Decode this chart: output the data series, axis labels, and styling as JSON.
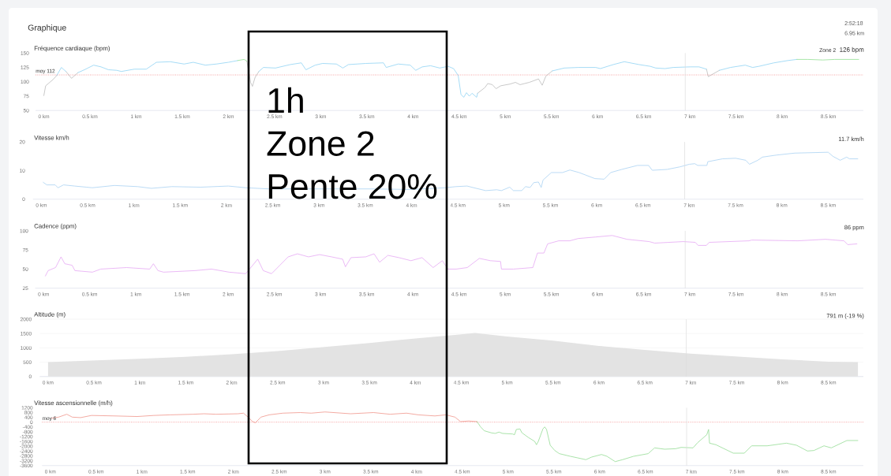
{
  "chart_data": [
    {
      "type": "other",
      "title": "Graphique",
      "annotations": [
        "2:52:18",
        "6.95 km"
      ]
    },
    {
      "type": "line",
      "title": "Fréquence cardiaque (bpm)",
      "marker": "none",
      "xlim": [
        -0.09,
        8.88
      ],
      "xticks": [
        {
          "value": 0,
          "label": "0 km"
        },
        {
          "value": 0.5,
          "label": "0.5 km"
        },
        {
          "value": 1,
          "label": "1 km"
        },
        {
          "value": 1.5,
          "label": "1.5 km"
        },
        {
          "value": 2,
          "label": "2 km"
        },
        {
          "value": 2.5,
          "label": "2.5 km"
        },
        {
          "value": 3,
          "label": "3 km"
        },
        {
          "value": 3.5,
          "label": "3.5 km"
        },
        {
          "value": 4,
          "label": "4 km"
        },
        {
          "value": 4.5,
          "label": "4.5 km"
        },
        {
          "value": 5,
          "label": "5 km"
        },
        {
          "value": 5.5,
          "label": "5.5 km"
        },
        {
          "value": 6,
          "label": "6 km"
        },
        {
          "value": 6.5,
          "label": "6.5 km"
        },
        {
          "value": 7,
          "label": "7 km"
        },
        {
          "value": 7.5,
          "label": "7.5 km"
        },
        {
          "value": 8,
          "label": "8 km"
        },
        {
          "value": 8.5,
          "label": "8.5 km"
        }
      ],
      "ylim": [
        50,
        150
      ],
      "yticks": [
        50,
        75,
        100,
        125,
        150
      ],
      "annotations": [
        "Zone 2",
        "126 bpm"
      ],
      "ref_lines": [
        {
          "axis": "y",
          "value": 112,
          "label": "moy 112",
          "color": "#f07070",
          "line_style": "dotted"
        },
        {
          "axis": "x",
          "value": 6.95,
          "color": "#dddddd"
        }
      ],
      "series": [
        {
          "color": "#bbbbbb",
          "x": [
            0,
            0.02,
            0.1,
            0.14,
            0.17,
            0.24,
            0.3,
            0.37,
            1.0,
            2.2,
            2.24,
            2.26,
            2.29,
            2.33,
            3.0,
            4.7,
            4.78,
            4.81,
            4.86,
            4.9,
            4.95,
            5.05,
            5.11,
            5.16,
            5.26,
            5.36,
            5.4,
            5.44,
            5.51,
            6.0,
            7.18,
            7.2,
            7.32
          ],
          "values": [
            76,
            93,
            104,
            111,
            null,
            118,
            106,
            116,
            null,
            136,
            99,
            92,
            108,
            118,
            null,
            80,
            90,
            97,
            95,
            88,
            93,
            96,
            99,
            95,
            99,
            105,
            94,
            110,
            119,
            null,
            122,
            109,
            120
          ]
        },
        {
          "color": "#8fd3f4",
          "x": [
            0.14,
            0.19,
            0.24,
            0.3,
            0.37,
            0.44,
            0.54,
            0.62,
            0.7,
            0.79,
            0.84,
            0.98,
            1.11,
            1.22,
            1.37,
            1.52,
            1.62,
            1.75,
            1.87,
            2.0,
            2.1,
            2.2,
            2.33,
            2.38,
            2.51,
            2.67,
            2.79,
            2.84,
            2.94,
            3.02,
            3.17,
            3.24,
            3.3,
            3.49,
            3.68,
            3.71,
            3.84,
            3.97,
            4.03,
            4.1,
            4.19,
            4.29,
            4.38,
            4.44,
            4.49,
            4.52,
            4.55,
            4.58,
            4.61,
            4.64,
            4.69,
            4.7,
            5.0,
            5.51,
            5.64,
            5.79,
            5.98,
            6.03,
            6.17,
            6.29,
            6.45,
            6.57,
            6.63,
            6.73,
            6.82,
            7.0,
            7.1,
            7.18,
            7.25,
            7.32,
            7.44,
            7.6,
            7.68,
            7.75,
            7.91,
            8.06,
            8.16
          ],
          "values": [
            111,
            125,
            118,
            null,
            116,
            121,
            129,
            126,
            121,
            120,
            118,
            122,
            122,
            134,
            135,
            131,
            134,
            129,
            131,
            134,
            137,
            null,
            118,
            125,
            124,
            130,
            133,
            121,
            129,
            132,
            131,
            124,
            130,
            132,
            133,
            125,
            131,
            129,
            120,
            126,
            128,
            124,
            127,
            123,
            111,
            78,
            73,
            81,
            75,
            80,
            73,
            80,
            null,
            119,
            124,
            125,
            125,
            123,
            130,
            135,
            130,
            127,
            124,
            123,
            125,
            126,
            126,
            122,
            null,
            120,
            125,
            129,
            125,
            127,
            133,
            137,
            139
          ]
        },
        {
          "color": "#93e093",
          "x": [
            2.1,
            2.17,
            2.2,
            5.0,
            8.16,
            8.28,
            8.44,
            8.57,
            8.69,
            8.83
          ],
          "values": [
            137,
            139,
            136,
            null,
            139,
            139,
            138,
            139,
            139,
            139
          ]
        }
      ]
    },
    {
      "type": "line",
      "title": "Vitesse km/h",
      "marker": "none",
      "xlim": [
        -0.09,
        8.88
      ],
      "xticks": [
        {
          "value": 0,
          "label": "0 km"
        },
        {
          "value": 0.5,
          "label": "0.5 km"
        },
        {
          "value": 1,
          "label": "1 km"
        },
        {
          "value": 1.5,
          "label": "1.5 km"
        },
        {
          "value": 2,
          "label": "2 km"
        },
        {
          "value": 2.5,
          "label": "2.5 km"
        },
        {
          "value": 3,
          "label": "3 km"
        },
        {
          "value": 3.5,
          "label": "3.5 km"
        },
        {
          "value": 4,
          "label": "4 km"
        },
        {
          "value": 4.5,
          "label": "4.5 km"
        },
        {
          "value": 5,
          "label": "5 km"
        },
        {
          "value": 5.5,
          "label": "5.5 km"
        },
        {
          "value": 6,
          "label": "6 km"
        },
        {
          "value": 6.5,
          "label": "6.5 km"
        },
        {
          "value": 7,
          "label": "7 km"
        },
        {
          "value": 7.5,
          "label": "7.5 km"
        },
        {
          "value": 8,
          "label": "8 km"
        },
        {
          "value": 8.5,
          "label": "8.5 km"
        }
      ],
      "ylim": [
        0,
        20
      ],
      "yticks": [
        0,
        10,
        20
      ],
      "annotations": [
        "11.7 km/h"
      ],
      "ref_lines": [
        {
          "axis": "x",
          "value": 6.95,
          "color": "#dddddd"
        }
      ],
      "x": [
        0.02,
        0.06,
        0.15,
        0.18,
        0.24,
        0.36,
        0.49,
        0.55,
        0.79,
        1.04,
        1.19,
        1.41,
        1.72,
        2.02,
        2.21,
        2.46,
        2.95,
        3.56,
        3.99,
        4.36,
        4.48,
        4.6,
        4.66,
        4.8,
        4.92,
        4.97,
        5.06,
        5.1,
        5.19,
        5.23,
        5.28,
        5.32,
        5.37,
        5.4,
        5.42,
        5.51,
        5.63,
        5.71,
        5.81,
        5.98,
        6.08,
        6.15,
        6.27,
        6.44,
        6.56,
        6.6,
        6.76,
        6.9,
        7.0,
        7.06,
        7.09,
        7.19,
        7.2,
        7.36,
        7.5,
        7.61,
        7.65,
        7.74,
        7.79,
        7.94,
        8.14,
        8.5,
        8.55,
        8.63,
        8.7,
        8.73,
        8.82
      ],
      "series": [
        {
          "color": "#a9d2f2",
          "values": [
            5.9,
            5,
            5,
            4,
            5,
            4.6,
            4.2,
            4,
            4.8,
            4.4,
            3.8,
            4.4,
            4.2,
            4.6,
            4,
            3.6,
            3.6,
            3.6,
            3.4,
            4,
            4.4,
            4.6,
            4.1,
            3,
            3.3,
            3,
            4.2,
            3,
            3,
            4.4,
            4.1,
            5.8,
            6,
            4.1,
            6.7,
            9.3,
            9.3,
            10.2,
            9.3,
            7.2,
            7,
            9.3,
            10.4,
            11.8,
            11.8,
            10.1,
            10.4,
            11.3,
            12.2,
            12.4,
            11.8,
            11.8,
            13.1,
            14.1,
            14.3,
            13.6,
            12.2,
            13.6,
            14.7,
            15.4,
            16.1,
            16.4,
            15,
            13.6,
            14.7,
            14.1,
            14.1
          ]
        }
      ]
    },
    {
      "type": "line",
      "title": "Cadence (ppm)",
      "marker": "none",
      "xlim": [
        -0.09,
        8.88
      ],
      "xticks": [
        {
          "value": 0,
          "label": "0 km"
        },
        {
          "value": 0.5,
          "label": "0.5 km"
        },
        {
          "value": 1,
          "label": "1 km"
        },
        {
          "value": 1.5,
          "label": "1.5 km"
        },
        {
          "value": 2,
          "label": "2 km"
        },
        {
          "value": 2.5,
          "label": "2.5 km"
        },
        {
          "value": 3,
          "label": "3 km"
        },
        {
          "value": 3.5,
          "label": "3.5 km"
        },
        {
          "value": 4,
          "label": "4 km"
        },
        {
          "value": 4.5,
          "label": "4.5 km"
        },
        {
          "value": 5,
          "label": "5 km"
        },
        {
          "value": 5.5,
          "label": "5.5 km"
        },
        {
          "value": 6,
          "label": "6 km"
        },
        {
          "value": 6.5,
          "label": "6.5 km"
        },
        {
          "value": 7,
          "label": "7 km"
        },
        {
          "value": 7.5,
          "label": "7.5 km"
        },
        {
          "value": 8,
          "label": "8 km"
        },
        {
          "value": 8.5,
          "label": "8.5 km"
        }
      ],
      "ylim": [
        25,
        100
      ],
      "yticks": [
        25,
        50,
        75,
        100
      ],
      "annotations": [
        "86 ppm"
      ],
      "ref_lines": [
        {
          "axis": "x",
          "value": 6.95,
          "color": "#dddddd"
        }
      ],
      "x": [
        0.02,
        0.05,
        0.13,
        0.16,
        0.19,
        0.23,
        0.31,
        0.34,
        0.53,
        0.62,
        0.9,
        1.15,
        1.19,
        1.24,
        1.3,
        1.64,
        1.82,
        2.01,
        2.19,
        2.32,
        2.38,
        2.47,
        2.56,
        2.65,
        2.75,
        2.87,
        2.99,
        3.12,
        3.24,
        3.27,
        3.33,
        3.49,
        3.58,
        3.64,
        3.73,
        3.85,
        3.98,
        4.1,
        4.22,
        4.32,
        4.38,
        4.47,
        4.59,
        4.72,
        4.84,
        4.95,
        4.96,
        5.09,
        5.3,
        5.35,
        5.42,
        5.46,
        5.58,
        5.7,
        5.79,
        5.98,
        6.16,
        6.32,
        6.56,
        6.62,
        6.93,
        7.06,
        7.09,
        7.18,
        7.21,
        7.64,
        7.67,
        8.17,
        8.47,
        8.67,
        8.71,
        8.81
      ],
      "series": [
        {
          "color": "#e6a8f4",
          "values": [
            41,
            48,
            52,
            59,
            66,
            57,
            55,
            48,
            46,
            50,
            52,
            50,
            57,
            48,
            46,
            48,
            50,
            46,
            44,
            63,
            48,
            44,
            55,
            66,
            70,
            66,
            69,
            66,
            63,
            53,
            65,
            66,
            70,
            59,
            68,
            65,
            61,
            65,
            52,
            61,
            50,
            50,
            52,
            64,
            61,
            60,
            50,
            50,
            52,
            71,
            71,
            83,
            87,
            87,
            90,
            92,
            94,
            89,
            86,
            84,
            86,
            85,
            81,
            81,
            85,
            87,
            88,
            87,
            89,
            87,
            82,
            83
          ]
        }
      ]
    },
    {
      "type": "area",
      "title": "Altitude (m)",
      "marker": "none",
      "grid": "y",
      "xlim": [
        -0.09,
        8.88
      ],
      "xticks": [
        {
          "value": 0,
          "label": "0 km"
        },
        {
          "value": 0.5,
          "label": "0.5 km"
        },
        {
          "value": 1,
          "label": "1 km"
        },
        {
          "value": 1.5,
          "label": "1.5 km"
        },
        {
          "value": 2,
          "label": "2 km"
        },
        {
          "value": 2.5,
          "label": "2.5 km"
        },
        {
          "value": 3,
          "label": "3 km"
        },
        {
          "value": 3.5,
          "label": "3.5 km"
        },
        {
          "value": 4,
          "label": "4 km"
        },
        {
          "value": 4.5,
          "label": "4.5 km"
        },
        {
          "value": 5,
          "label": "5 km"
        },
        {
          "value": 5.5,
          "label": "5.5 km"
        },
        {
          "value": 6,
          "label": "6 km"
        },
        {
          "value": 6.5,
          "label": "6.5 km"
        },
        {
          "value": 7,
          "label": "7 km"
        },
        {
          "value": 7.5,
          "label": "7.5 km"
        },
        {
          "value": 8,
          "label": "8 km"
        },
        {
          "value": 8.5,
          "label": "8.5 km"
        }
      ],
      "ylim": [
        0,
        2000
      ],
      "yticks": [
        0,
        500,
        1000,
        1500,
        2000
      ],
      "annotations": [
        "791 m (-19 %)"
      ],
      "ref_lines": [
        {
          "axis": "x",
          "value": 6.95,
          "color": "#dddddd"
        }
      ],
      "x": [
        0,
        0.5,
        1,
        1.5,
        2,
        2.5,
        3,
        3.5,
        4,
        4.5,
        4.65,
        5,
        5.5,
        6,
        6.5,
        7,
        7.5,
        8,
        8.5,
        8.82
      ],
      "series": [
        {
          "color": "#e3e3e3",
          "values": [
            500,
            560,
            620,
            690,
            780,
            890,
            1030,
            1170,
            1330,
            1470,
            1520,
            1400,
            1250,
            1070,
            930,
            800,
            700,
            600,
            520,
            500
          ]
        }
      ]
    },
    {
      "type": "line",
      "title": "Vitesse ascensionnelle (m/h)",
      "marker": "none",
      "xlim": [
        -0.09,
        8.88
      ],
      "xticks": [
        {
          "value": 0,
          "label": "0 km"
        },
        {
          "value": 0.5,
          "label": "0.5 km"
        },
        {
          "value": 1,
          "label": "1 km"
        },
        {
          "value": 1.5,
          "label": "1.5 km"
        },
        {
          "value": 2,
          "label": "2 km"
        },
        {
          "value": 2.5,
          "label": "2.5 km"
        },
        {
          "value": 3,
          "label": "3 km"
        },
        {
          "value": 3.5,
          "label": "3.5 km"
        },
        {
          "value": 4,
          "label": "4 km"
        },
        {
          "value": 4.5,
          "label": "4.5 km"
        },
        {
          "value": 5,
          "label": "5 km"
        },
        {
          "value": 5.5,
          "label": "5.5 km"
        },
        {
          "value": 6,
          "label": "6 km"
        },
        {
          "value": 6.5,
          "label": "6.5 km"
        },
        {
          "value": 7,
          "label": "7 km"
        },
        {
          "value": 7.5,
          "label": "7.5 km"
        },
        {
          "value": 8,
          "label": "8 km"
        },
        {
          "value": 8.5,
          "label": "8.5 km"
        }
      ],
      "ylim": [
        -3600,
        1200
      ],
      "yticks": [
        -3600,
        -3200,
        -2800,
        -2400,
        -2000,
        -1600,
        -1200,
        -800,
        -400,
        0,
        400,
        800,
        1200
      ],
      "ref_lines": [
        {
          "axis": "y",
          "value": 6,
          "label": "moy 6",
          "color": "#f07070",
          "line_style": "dotted"
        },
        {
          "axis": "x",
          "value": 6.95,
          "color": "#dddddd"
        }
      ],
      "series": [
        {
          "color": "#f0968c",
          "x": [
            0.01,
            0.09,
            0.18,
            0.24,
            0.33,
            0.45,
            0.7,
            0.95,
            1.13,
            1.31,
            1.56,
            1.68,
            1.81,
            2.05,
            2.11,
            2.16,
            2.21,
            2.24,
            2.3,
            2.39,
            2.54,
            2.73,
            2.85,
            3.0,
            3.28,
            3.53,
            3.71,
            3.89,
            4.02,
            4.2,
            4.32,
            4.42,
            4.48,
            4.57,
            4.66
          ],
          "values": [
            330,
            420,
            660,
            420,
            380,
            560,
            520,
            470,
            560,
            610,
            660,
            700,
            660,
            700,
            750,
            420,
            50,
            -50,
            420,
            610,
            750,
            800,
            750,
            850,
            700,
            800,
            660,
            750,
            610,
            520,
            610,
            420,
            50,
            100,
            50
          ]
        },
        {
          "color": "#94dc94",
          "x": [
            4.66,
            4.7,
            4.74,
            4.82,
            4.86,
            4.9,
            4.94,
            5.05,
            5.07,
            5.09,
            5.13,
            5.15,
            5.22,
            5.29,
            5.31,
            5.33,
            5.38,
            5.4,
            5.42,
            5.46,
            5.51,
            5.56,
            5.68,
            5.76,
            5.85,
            5.91,
            6.02,
            6.08,
            6.17,
            6.25,
            6.37,
            6.53,
            6.6,
            6.71,
            6.83,
            6.89,
            7.02,
            7.07,
            7.17,
            7.19,
            7.2,
            7.27,
            7.46,
            7.58,
            7.66,
            7.83,
            8.04,
            8.15,
            8.27,
            8.34,
            8.45,
            8.53,
            8.7,
            8.82
          ],
          "values": [
            50,
            -390,
            -710,
            -890,
            -930,
            -820,
            -930,
            -980,
            -1040,
            -600,
            -560,
            -870,
            -1260,
            -1590,
            -1870,
            -1590,
            -560,
            -390,
            -600,
            -1910,
            -2350,
            -2610,
            -2830,
            -2960,
            -3110,
            -2900,
            -2680,
            -2830,
            -3270,
            -3110,
            -2830,
            -2610,
            -2130,
            -2240,
            -2200,
            -2090,
            -2130,
            -1700,
            -1040,
            -600,
            -1740,
            -1870,
            -2570,
            -2570,
            -1960,
            -1960,
            -1740,
            -1910,
            -2390,
            -2350,
            -1960,
            -2130,
            -1520,
            -1520
          ]
        }
      ]
    },
    {
      "type": "other",
      "annotations": [
        "1h",
        "Zone 2",
        "Pente 20%"
      ]
    }
  ]
}
